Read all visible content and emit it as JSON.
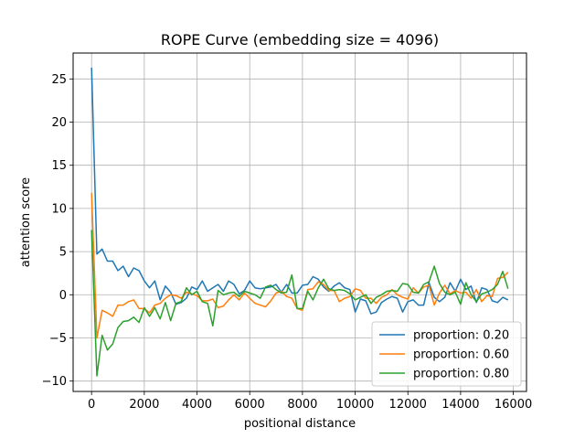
{
  "chart_data": {
    "type": "line",
    "title": "ROPE Curve (embedding size = 4096)",
    "xlabel": "positional distance",
    "ylabel": "attention score",
    "xlim": [
      -700,
      16500
    ],
    "ylim": [
      -11.2,
      28
    ],
    "xticks": [
      0,
      2000,
      4000,
      6000,
      8000,
      10000,
      12000,
      14000,
      16000
    ],
    "xtick_labels": [
      "0",
      "2000",
      "4000",
      "6000",
      "8000",
      "10000",
      "12000",
      "14000",
      "16000"
    ],
    "yticks": [
      -10,
      -5,
      0,
      5,
      10,
      15,
      20,
      25
    ],
    "ytick_labels": [
      "−10",
      "−5",
      "0",
      "5",
      "10",
      "15",
      "20",
      "25"
    ],
    "grid": true,
    "legend_position": "lower-right",
    "series": [
      {
        "name": "proportion: 0.20",
        "color": "#1f77b4",
        "x": [
          0,
          200,
          400,
          600,
          800,
          1000,
          1200,
          1400,
          1600,
          1800,
          2000,
          2200,
          2400,
          2600,
          2800,
          3000,
          3200,
          3400,
          3600,
          3800,
          4000,
          4200,
          4400,
          4600,
          4800,
          5000,
          5200,
          5400,
          5600,
          5800,
          6000,
          6200,
          6400,
          6600,
          6800,
          7000,
          7200,
          7400,
          7600,
          7800,
          8000,
          8200,
          8400,
          8600,
          8800,
          9000,
          9200,
          9400,
          9600,
          9800,
          10000,
          10200,
          10400,
          10600,
          10800,
          11000,
          11200,
          11400,
          11600,
          11800,
          12000,
          12200,
          12400,
          12600,
          12800,
          13000,
          13200,
          13400,
          13600,
          13800,
          14000,
          14200,
          14400,
          14600,
          14800,
          15000,
          15200,
          15400,
          15600,
          15800
        ],
        "y": [
          26.3,
          4.7,
          5.3,
          3.9,
          3.9,
          2.8,
          3.3,
          2.1,
          3.1,
          2.8,
          1.6,
          0.8,
          1.6,
          -0.6,
          1.0,
          0.3,
          -1.1,
          -0.9,
          -0.4,
          0.9,
          0.6,
          1.6,
          0.4,
          0.8,
          1.2,
          0.4,
          1.6,
          1.2,
          0.1,
          0.5,
          1.6,
          0.8,
          0.7,
          0.8,
          0.9,
          1.2,
          0.3,
          1.2,
          0.2,
          0.2,
          1.1,
          1.2,
          2.1,
          1.8,
          0.9,
          0.4,
          1.0,
          1.4,
          0.8,
          0.6,
          -2.0,
          -0.5,
          -0.7,
          -2.2,
          -2.0,
          -0.9,
          -0.5,
          -0.2,
          -0.4,
          -2.0,
          -0.8,
          -0.6,
          -1.2,
          -1.2,
          1.4,
          -0.3,
          -0.8,
          -0.3,
          1.4,
          0.4,
          1.8,
          0.6,
          1.0,
          -0.9,
          0.8,
          0.6,
          -0.7,
          -0.9,
          -0.3,
          -0.6
        ]
      },
      {
        "name": "proportion: 0.60",
        "color": "#ff7f0e",
        "x": [
          0,
          200,
          400,
          600,
          800,
          1000,
          1200,
          1400,
          1600,
          1800,
          2000,
          2200,
          2400,
          2600,
          2800,
          3000,
          3200,
          3400,
          3600,
          3800,
          4000,
          4200,
          4400,
          4600,
          4800,
          5000,
          5200,
          5400,
          5600,
          5800,
          6000,
          6200,
          6400,
          6600,
          6800,
          7000,
          7200,
          7400,
          7600,
          7800,
          8000,
          8200,
          8400,
          8600,
          8800,
          9000,
          9200,
          9400,
          9600,
          9800,
          10000,
          10200,
          10400,
          10600,
          10800,
          11000,
          11200,
          11400,
          11600,
          11800,
          12000,
          12200,
          12400,
          12600,
          12800,
          13000,
          13200,
          13400,
          13600,
          13800,
          14000,
          14200,
          14400,
          14600,
          14800,
          15000,
          15200,
          15400,
          15600,
          15800
        ],
        "y": [
          11.8,
          -5.0,
          -1.8,
          -2.1,
          -2.5,
          -1.2,
          -1.2,
          -0.8,
          -0.6,
          -1.6,
          -1.6,
          -2.1,
          -1.2,
          -1.0,
          -0.4,
          0.0,
          -0.1,
          -0.4,
          0.3,
          0.1,
          -0.1,
          -0.7,
          -0.7,
          -0.5,
          -1.5,
          -1.3,
          -0.6,
          0.0,
          -0.6,
          0.2,
          -0.4,
          -1.0,
          -1.2,
          -1.4,
          -0.7,
          0.2,
          0.4,
          -0.2,
          -0.4,
          -1.6,
          -1.8,
          0.6,
          0.7,
          1.5,
          1.2,
          0.5,
          0.5,
          -0.8,
          -0.4,
          -0.2,
          0.7,
          0.5,
          -0.4,
          -0.4,
          -1.0,
          -0.3,
          0.0,
          0.6,
          0.0,
          -0.3,
          -0.5,
          0.8,
          0.2,
          0.9,
          1.1,
          -1.2,
          0.2,
          1.1,
          0.1,
          0.5,
          0.2,
          0.3,
          -0.4,
          0.6,
          -0.8,
          -0.1,
          -0.2,
          1.9,
          2.0,
          2.6
        ]
      },
      {
        "name": "proportion: 0.80",
        "color": "#2ca02c",
        "x": [
          0,
          200,
          400,
          600,
          800,
          1000,
          1200,
          1400,
          1600,
          1800,
          2000,
          2200,
          2400,
          2600,
          2800,
          3000,
          3200,
          3400,
          3600,
          3800,
          4000,
          4200,
          4400,
          4600,
          4800,
          5000,
          5200,
          5400,
          5600,
          5800,
          6000,
          6200,
          6400,
          6600,
          6800,
          7000,
          7200,
          7400,
          7600,
          7800,
          8000,
          8200,
          8400,
          8600,
          8800,
          9000,
          9200,
          9400,
          9600,
          9800,
          10000,
          10200,
          10400,
          10600,
          10800,
          11000,
          11200,
          11400,
          11600,
          11800,
          12000,
          12200,
          12400,
          12600,
          12800,
          13000,
          13200,
          13400,
          13600,
          13800,
          14000,
          14200,
          14400,
          14600,
          14800,
          15000,
          15200,
          15400,
          15600,
          15800
        ],
        "y": [
          7.5,
          -9.4,
          -4.7,
          -6.4,
          -5.7,
          -3.8,
          -3.1,
          -3.0,
          -2.6,
          -3.2,
          -1.5,
          -2.5,
          -1.5,
          -2.8,
          -0.9,
          -3.0,
          -1.0,
          -0.8,
          0.8,
          0.0,
          0.4,
          -0.8,
          -1.0,
          -3.6,
          0.5,
          0.0,
          0.2,
          0.3,
          -0.2,
          0.4,
          0.2,
          0.0,
          -0.4,
          0.9,
          1.1,
          0.6,
          0.2,
          0.3,
          2.3,
          -1.6,
          -1.6,
          0.4,
          -0.6,
          0.8,
          1.8,
          0.7,
          0.5,
          0.6,
          0.5,
          0.1,
          -0.6,
          -0.3,
          0.0,
          -1.0,
          -0.3,
          0.0,
          0.4,
          0.5,
          0.4,
          1.3,
          1.2,
          0.3,
          0.2,
          1.2,
          1.5,
          3.3,
          1.3,
          0.3,
          0.0,
          0.3,
          -1.1,
          1.4,
          0.0,
          -0.8,
          0.1,
          0.3,
          0.6,
          1.2,
          2.7,
          0.7
        ]
      }
    ]
  }
}
